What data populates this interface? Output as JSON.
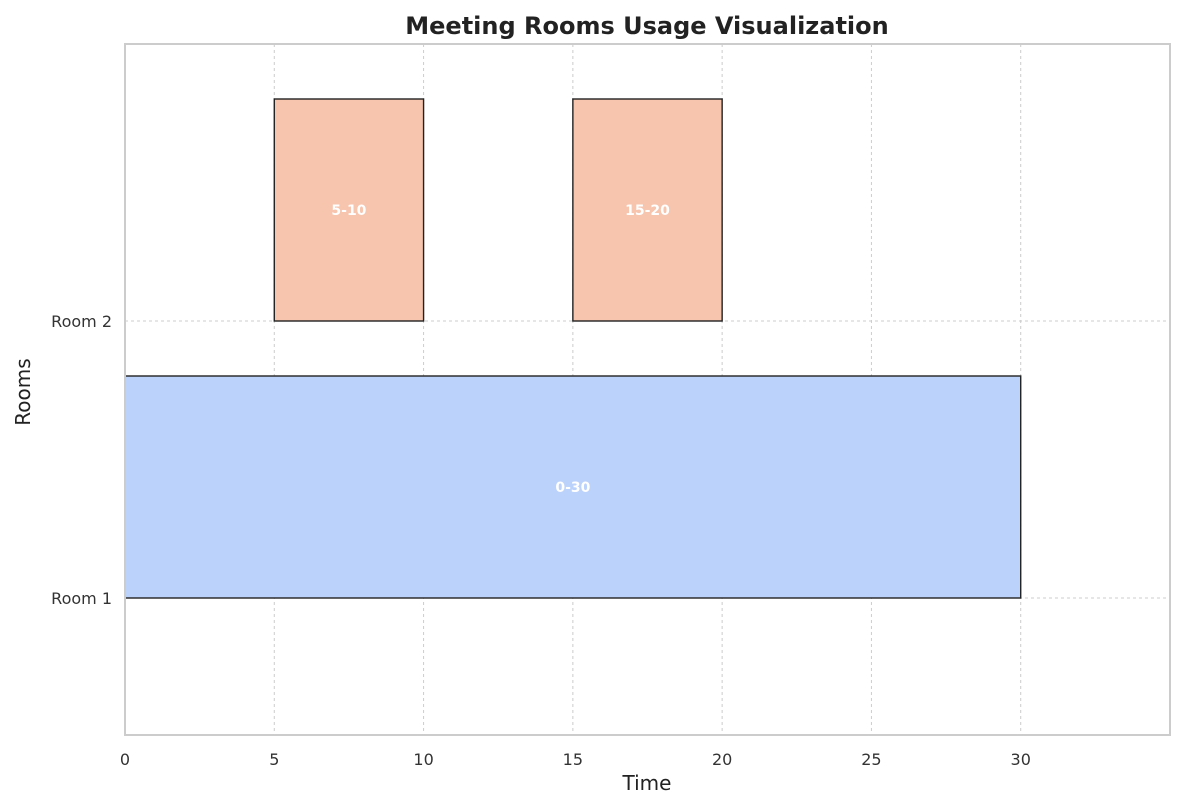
{
  "chart_data": {
    "type": "bar",
    "orientation": "horizontal-ranges",
    "title": "Meeting Rooms Usage Visualization",
    "xlabel": "Time",
    "ylabel": "Rooms",
    "xlim": [
      0,
      35
    ],
    "xticks": [
      0,
      5,
      10,
      15,
      20,
      25,
      30
    ],
    "categories": [
      "Room 1",
      "Room 2"
    ],
    "grid": true,
    "bars": [
      {
        "room": "Room 1",
        "start": 0,
        "end": 30,
        "label": "0-30",
        "color": "#bbd2fb"
      },
      {
        "room": "Room 2",
        "start": 5,
        "end": 10,
        "label": "5-10",
        "color": "#f7c4ae"
      },
      {
        "room": "Room 2",
        "start": 15,
        "end": 20,
        "label": "15-20",
        "color": "#f7c4ae"
      }
    ]
  }
}
